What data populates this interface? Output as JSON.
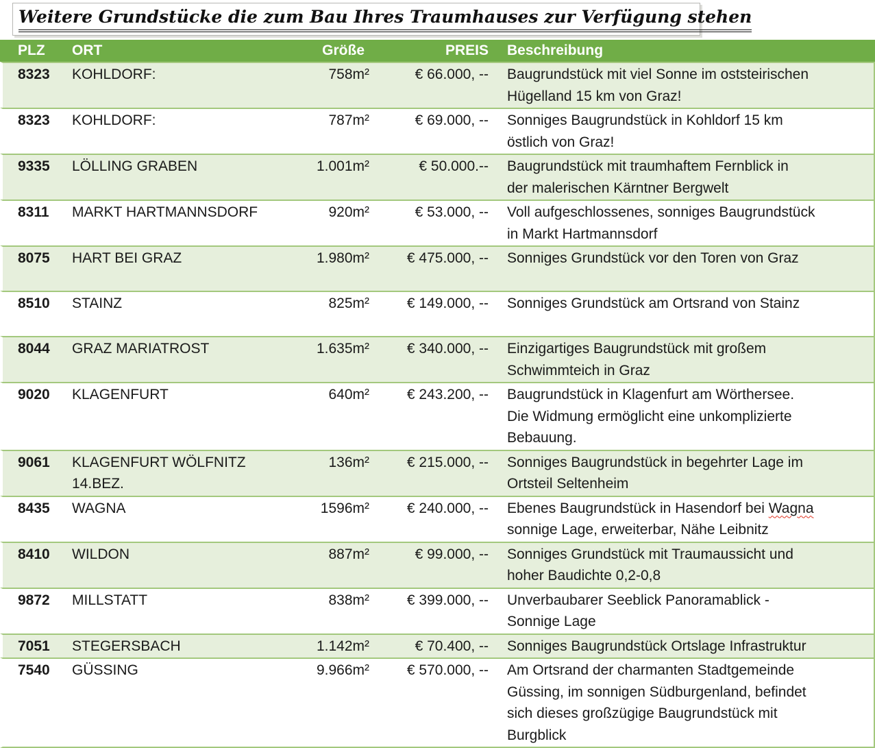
{
  "title": "Weitere Grundstücke die zum Bau Ihres Traumhauses zur Verfügung stehen",
  "colors": {
    "header_green": "#70ad47",
    "row_shade": "#e6efdc",
    "separator": "#a3c87d",
    "spellcheck_red": "#e0301e"
  },
  "table": {
    "headers": {
      "plz": "PLZ",
      "ort": "ORT",
      "groesse": "Größe",
      "preis": "PREIS",
      "beschreibung": "Beschreibung"
    },
    "rows": [
      {
        "plz": "8323",
        "ort": "KOHLDORF:",
        "groesse": "758m²",
        "preis": "€ 66.000, --",
        "beschreibung": [
          {
            "text": "Baugrundstück mit viel Sonne im oststeirischen\nHügelland 15 km von Graz!"
          }
        ]
      },
      {
        "plz": "8323",
        "ort": "KOHLDORF:",
        "groesse": "787m²",
        "preis": "€ 69.000, --",
        "beschreibung": [
          {
            "text": "Sonniges Baugrundstück in Kohldorf 15 km\nöstlich von Graz!"
          }
        ]
      },
      {
        "plz": "9335",
        "ort": "LÖLLING GRABEN",
        "groesse": "1.001m²",
        "preis": "€ 50.000.--",
        "beschreibung": [
          {
            "text": "Baugrundstück mit traumhaftem Fernblick in\nder malerischen Kärntner Bergwelt"
          }
        ]
      },
      {
        "plz": "8311",
        "ort": "MARKT HARTMANNSDORF",
        "groesse": "920m²",
        "preis": "€ 53.000, --",
        "beschreibung": [
          {
            "text": "Voll aufgeschlossenes, sonniges Baugrundstück\nin Markt Hartmannsdorf"
          }
        ]
      },
      {
        "plz": "8075",
        "ort": "HART BEI GRAZ",
        "groesse": "1.980m²",
        "preis": "€ 475.000, --",
        "beschreibung": [
          {
            "text": "Sonniges Grundstück vor den Toren von Graz"
          }
        ]
      },
      {
        "plz": "8510",
        "ort": "STAINZ",
        "groesse": "825m²",
        "preis": "€ 149.000, --",
        "beschreibung": [
          {
            "text": "Sonniges Grundstück am Ortsrand von Stainz"
          }
        ]
      },
      {
        "plz": "8044",
        "ort": "GRAZ MARIATROST",
        "groesse": "1.635m²",
        "preis": "€ 340.000, --",
        "beschreibung": [
          {
            "text": "Einzigartiges Baugrundstück mit großem\nSchwimmteich in Graz"
          }
        ]
      },
      {
        "plz": "9020",
        "ort": "KLAGENFURT",
        "groesse": "640m²",
        "preis": "€ 243.200, --",
        "beschreibung": [
          {
            "text": "Baugrundstück in Klagenfurt am Wörthersee.\nDie Widmung ermöglicht eine unkomplizierte\nBebauung."
          }
        ]
      },
      {
        "plz": "9061",
        "ort": "KLAGENFURT WÖLFNITZ\n14.BEZ.",
        "groesse": "136m²",
        "preis": "€ 215.000, --",
        "beschreibung": [
          {
            "text": "Sonniges Baugrundstück in begehrter Lage im\nOrtsteil Seltenheim"
          }
        ]
      },
      {
        "plz": "8435",
        "ort": "WAGNA",
        "groesse": "1596m²",
        "preis": "€ 240.000, --",
        "beschreibung": [
          {
            "text": "Ebenes Baugrundstück in Hasendorf bei "
          },
          {
            "text": "Wagna",
            "misspelled": true
          },
          {
            "text": "\nsonnige Lage, erweiterbar, Nähe Leibnitz"
          }
        ]
      },
      {
        "plz": "8410",
        "ort": "WILDON",
        "groesse": "887m²",
        "preis": "€ 99.000, --",
        "beschreibung": [
          {
            "text": "Sonniges Grundstück mit Traumaussicht und\nhoher Baudichte 0,2-0,8"
          }
        ]
      },
      {
        "plz": "9872",
        "ort": "MILLSTATT",
        "groesse": "838m²",
        "preis": "€ 399.000, --",
        "beschreibung": [
          {
            "text": "Unverbaubarer Seeblick Panoramablick -\nSonnige Lage"
          }
        ]
      },
      {
        "plz": "7051",
        "ort": "STEGERSBACH",
        "groesse": "1.142m²",
        "preis": "€ 70.400, --",
        "compact": true,
        "beschreibung": [
          {
            "text": "Sonniges Baugrundstück Ortslage Infrastruktur"
          }
        ]
      },
      {
        "plz": "7540",
        "ort": "GÜSSING",
        "groesse": "9.966m²",
        "preis": "€ 570.000, --",
        "beschreibung": [
          {
            "text": "Am Ortsrand der charmanten Stadtgemeinde\nGüssing, im sonnigen Südburgenland, befindet\nsich dieses großzügige Baugrundstück mit\nBurgblick"
          }
        ]
      }
    ]
  }
}
